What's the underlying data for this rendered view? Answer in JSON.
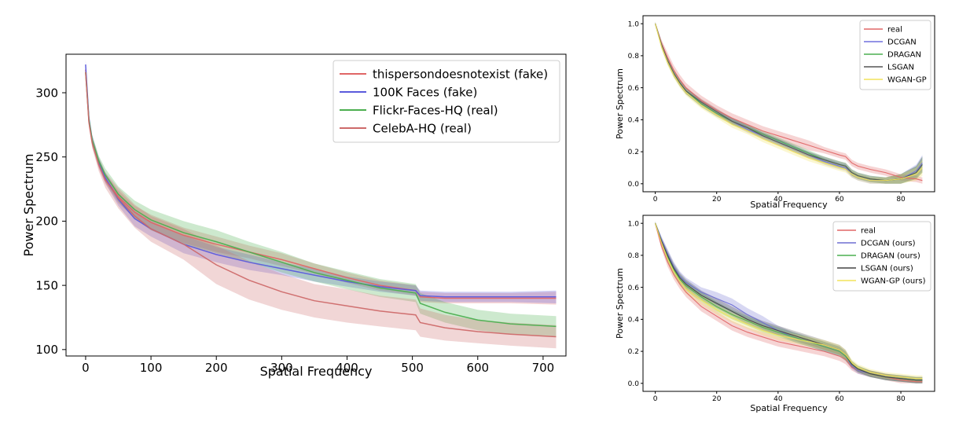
{
  "chart_data": [
    {
      "type": "line",
      "xlabel": "Spatial Frequency",
      "ylabel": "Power Spectrum",
      "xlim": [
        -30,
        735
      ],
      "ylim": [
        95,
        330
      ],
      "xticks": [
        "0",
        "100",
        "200",
        "300",
        "400",
        "500",
        "600",
        "700"
      ],
      "yticks": [
        "100",
        "150",
        "200",
        "250",
        "300"
      ],
      "legend_position": "top-right",
      "x": [
        0,
        5,
        10,
        20,
        30,
        50,
        75,
        100,
        150,
        200,
        250,
        300,
        350,
        400,
        450,
        505,
        512,
        550,
        600,
        650,
        720
      ],
      "series": [
        {
          "name": "thispersondoesnotexist (fake)",
          "color": "#e06666",
          "values": [
            318,
            278,
            262,
            245,
            233,
            219,
            207,
            199,
            189,
            182,
            176,
            170,
            163,
            156,
            150,
            146,
            141,
            140,
            140,
            140,
            140
          ],
          "band": [
            4,
            4,
            4,
            4,
            4,
            5,
            5,
            6,
            6,
            6,
            5,
            5,
            4,
            4,
            4,
            4,
            4,
            4,
            4,
            4,
            5
          ]
        },
        {
          "name": "100K Faces (fake)",
          "color": "#5b5bdc",
          "values": [
            322,
            280,
            263,
            246,
            234,
            217,
            202,
            194,
            182,
            174,
            168,
            163,
            158,
            153,
            149,
            146,
            142,
            141,
            141,
            141,
            141
          ],
          "band": [
            4,
            4,
            4,
            4,
            4,
            5,
            6,
            6,
            7,
            6,
            6,
            5,
            5,
            4,
            4,
            4,
            4,
            4,
            4,
            4,
            5
          ]
        },
        {
          "name": "Flickr-Faces-HQ (real)",
          "color": "#4caf50",
          "values": [
            316,
            279,
            263,
            247,
            236,
            221,
            209,
            201,
            191,
            184,
            176,
            168,
            160,
            154,
            148,
            144,
            136,
            129,
            123,
            120,
            118
          ],
          "band": [
            4,
            4,
            4,
            4,
            5,
            6,
            7,
            8,
            9,
            9,
            8,
            8,
            7,
            7,
            7,
            7,
            8,
            8,
            8,
            8,
            8
          ]
        },
        {
          "name": "CelebA-HQ (real)",
          "color": "#cd6a6a",
          "values": [
            316,
            277,
            261,
            244,
            232,
            218,
            204,
            194,
            182,
            166,
            154,
            145,
            138,
            134,
            130,
            127,
            121,
            117,
            114,
            112,
            110
          ],
          "band": [
            4,
            4,
            4,
            5,
            6,
            8,
            9,
            10,
            12,
            15,
            15,
            14,
            13,
            13,
            12,
            12,
            11,
            10,
            9,
            9,
            9
          ]
        }
      ]
    },
    {
      "type": "line",
      "xlabel": "Spatial Frequency",
      "ylabel": "Power Spectrum",
      "xlim": [
        -4,
        91
      ],
      "ylim": [
        -0.05,
        1.05
      ],
      "xticks": [
        "0",
        "20",
        "40",
        "60",
        "80"
      ],
      "yticks": [
        "0.0",
        "0.2",
        "0.4",
        "0.6",
        "0.8",
        "1.0"
      ],
      "legend_position": "top-right",
      "x": [
        0,
        2,
        4,
        6,
        8,
        10,
        15,
        20,
        25,
        30,
        35,
        40,
        45,
        50,
        55,
        60,
        62,
        64,
        66,
        70,
        75,
        80,
        85,
        87
      ],
      "series": [
        {
          "name": "real",
          "color": "#e06666",
          "values": [
            1.0,
            0.88,
            0.79,
            0.71,
            0.65,
            0.6,
            0.52,
            0.46,
            0.41,
            0.37,
            0.33,
            0.3,
            0.27,
            0.24,
            0.21,
            0.18,
            0.17,
            0.13,
            0.11,
            0.09,
            0.07,
            0.04,
            0.03,
            0.02
          ],
          "band": [
            0.01,
            0.02,
            0.03,
            0.03,
            0.03,
            0.03,
            0.03,
            0.03,
            0.03,
            0.03,
            0.03,
            0.03,
            0.03,
            0.03,
            0.02,
            0.02,
            0.02,
            0.02,
            0.02,
            0.02,
            0.02,
            0.02,
            0.02,
            0.02
          ]
        },
        {
          "name": "DCGAN",
          "color": "#7070dd",
          "values": [
            1.0,
            0.87,
            0.77,
            0.69,
            0.63,
            0.58,
            0.5,
            0.44,
            0.39,
            0.34,
            0.3,
            0.26,
            0.22,
            0.18,
            0.14,
            0.11,
            0.1,
            0.06,
            0.04,
            0.02,
            0.02,
            0.03,
            0.08,
            0.13
          ],
          "band": [
            0.01,
            0.02,
            0.02,
            0.02,
            0.02,
            0.02,
            0.02,
            0.02,
            0.02,
            0.02,
            0.02,
            0.02,
            0.02,
            0.02,
            0.02,
            0.02,
            0.02,
            0.02,
            0.02,
            0.02,
            0.02,
            0.03,
            0.04,
            0.05
          ]
        },
        {
          "name": "DRAGAN",
          "color": "#4caf50",
          "values": [
            1.0,
            0.87,
            0.77,
            0.69,
            0.63,
            0.58,
            0.5,
            0.44,
            0.39,
            0.35,
            0.31,
            0.27,
            0.23,
            0.19,
            0.15,
            0.12,
            0.11,
            0.07,
            0.05,
            0.03,
            0.02,
            0.03,
            0.07,
            0.12
          ],
          "band": [
            0.01,
            0.02,
            0.02,
            0.02,
            0.02,
            0.02,
            0.02,
            0.02,
            0.02,
            0.02,
            0.02,
            0.02,
            0.02,
            0.02,
            0.02,
            0.02,
            0.02,
            0.02,
            0.02,
            0.02,
            0.02,
            0.03,
            0.04,
            0.05
          ]
        },
        {
          "name": "LSGAN",
          "color": "#555555",
          "values": [
            1.0,
            0.87,
            0.77,
            0.69,
            0.63,
            0.58,
            0.51,
            0.45,
            0.39,
            0.35,
            0.3,
            0.26,
            0.22,
            0.18,
            0.15,
            0.12,
            0.11,
            0.07,
            0.05,
            0.03,
            0.02,
            0.03,
            0.07,
            0.12
          ],
          "band": [
            0.01,
            0.02,
            0.02,
            0.02,
            0.02,
            0.02,
            0.02,
            0.02,
            0.02,
            0.02,
            0.02,
            0.02,
            0.02,
            0.02,
            0.02,
            0.02,
            0.02,
            0.02,
            0.02,
            0.02,
            0.02,
            0.03,
            0.04,
            0.05
          ]
        },
        {
          "name": "WGAN-GP",
          "color": "#f2e35a",
          "values": [
            1.0,
            0.86,
            0.76,
            0.68,
            0.62,
            0.57,
            0.49,
            0.43,
            0.37,
            0.33,
            0.28,
            0.24,
            0.2,
            0.16,
            0.13,
            0.1,
            0.09,
            0.06,
            0.04,
            0.02,
            0.02,
            0.03,
            0.06,
            0.1
          ],
          "band": [
            0.01,
            0.02,
            0.02,
            0.02,
            0.02,
            0.02,
            0.02,
            0.02,
            0.02,
            0.02,
            0.02,
            0.02,
            0.02,
            0.02,
            0.02,
            0.02,
            0.02,
            0.02,
            0.02,
            0.02,
            0.02,
            0.03,
            0.04,
            0.05
          ]
        }
      ]
    },
    {
      "type": "line",
      "xlabel": "Spatial Frequency",
      "ylabel": "Power Spectrum",
      "xlim": [
        -4,
        91
      ],
      "ylim": [
        -0.05,
        1.05
      ],
      "xticks": [
        "0",
        "20",
        "40",
        "60",
        "80"
      ],
      "yticks": [
        "0.0",
        "0.2",
        "0.4",
        "0.6",
        "0.8",
        "1.0"
      ],
      "legend_position": "top-right",
      "x": [
        0,
        2,
        4,
        6,
        8,
        10,
        15,
        20,
        25,
        30,
        35,
        40,
        45,
        50,
        55,
        60,
        62,
        64,
        66,
        70,
        75,
        80,
        85,
        87
      ],
      "series": [
        {
          "name": "real",
          "color": "#e06666",
          "values": [
            1.0,
            0.86,
            0.76,
            0.68,
            0.62,
            0.57,
            0.48,
            0.42,
            0.36,
            0.32,
            0.29,
            0.26,
            0.24,
            0.22,
            0.2,
            0.17,
            0.15,
            0.1,
            0.08,
            0.06,
            0.04,
            0.02,
            0.01,
            0.01
          ],
          "band": [
            0.01,
            0.02,
            0.03,
            0.03,
            0.03,
            0.03,
            0.03,
            0.03,
            0.03,
            0.03,
            0.03,
            0.03,
            0.03,
            0.03,
            0.03,
            0.03,
            0.03,
            0.02,
            0.02,
            0.02,
            0.02,
            0.02,
            0.01,
            0.01
          ]
        },
        {
          "name": "DCGAN (ours)",
          "color": "#6e6ed2",
          "values": [
            1.0,
            0.9,
            0.81,
            0.73,
            0.67,
            0.63,
            0.57,
            0.53,
            0.49,
            0.43,
            0.38,
            0.33,
            0.29,
            0.26,
            0.23,
            0.2,
            0.17,
            0.11,
            0.08,
            0.06,
            0.04,
            0.03,
            0.02,
            0.02
          ],
          "band": [
            0.01,
            0.02,
            0.03,
            0.03,
            0.03,
            0.03,
            0.03,
            0.04,
            0.04,
            0.04,
            0.04,
            0.03,
            0.03,
            0.03,
            0.03,
            0.03,
            0.03,
            0.02,
            0.02,
            0.02,
            0.02,
            0.02,
            0.02,
            0.02
          ]
        },
        {
          "name": "DRAGAN (ours)",
          "color": "#4caf50",
          "values": [
            1.0,
            0.89,
            0.79,
            0.71,
            0.65,
            0.61,
            0.54,
            0.48,
            0.43,
            0.39,
            0.35,
            0.32,
            0.29,
            0.26,
            0.23,
            0.2,
            0.17,
            0.12,
            0.09,
            0.06,
            0.04,
            0.03,
            0.02,
            0.02
          ],
          "band": [
            0.01,
            0.02,
            0.03,
            0.03,
            0.03,
            0.03,
            0.03,
            0.03,
            0.03,
            0.03,
            0.03,
            0.03,
            0.03,
            0.03,
            0.03,
            0.03,
            0.03,
            0.02,
            0.02,
            0.02,
            0.02,
            0.02,
            0.02,
            0.02
          ]
        },
        {
          "name": "LSGAN (ours)",
          "color": "#444444",
          "values": [
            1.0,
            0.89,
            0.8,
            0.72,
            0.66,
            0.62,
            0.55,
            0.5,
            0.45,
            0.4,
            0.36,
            0.33,
            0.3,
            0.27,
            0.24,
            0.21,
            0.18,
            0.12,
            0.09,
            0.06,
            0.04,
            0.03,
            0.02,
            0.02
          ],
          "band": [
            0.01,
            0.02,
            0.03,
            0.03,
            0.03,
            0.03,
            0.03,
            0.03,
            0.03,
            0.03,
            0.03,
            0.03,
            0.03,
            0.03,
            0.03,
            0.03,
            0.03,
            0.02,
            0.02,
            0.02,
            0.02,
            0.02,
            0.02,
            0.02
          ]
        },
        {
          "name": "WGAN-GP (ours)",
          "color": "#f2e35a",
          "values": [
            1.0,
            0.88,
            0.78,
            0.7,
            0.64,
            0.59,
            0.52,
            0.46,
            0.41,
            0.37,
            0.33,
            0.3,
            0.28,
            0.26,
            0.24,
            0.21,
            0.18,
            0.13,
            0.1,
            0.07,
            0.05,
            0.04,
            0.03,
            0.03
          ],
          "band": [
            0.01,
            0.02,
            0.03,
            0.03,
            0.03,
            0.03,
            0.03,
            0.03,
            0.03,
            0.03,
            0.03,
            0.03,
            0.03,
            0.03,
            0.03,
            0.03,
            0.03,
            0.02,
            0.02,
            0.02,
            0.02,
            0.02,
            0.02,
            0.02
          ]
        }
      ]
    }
  ]
}
